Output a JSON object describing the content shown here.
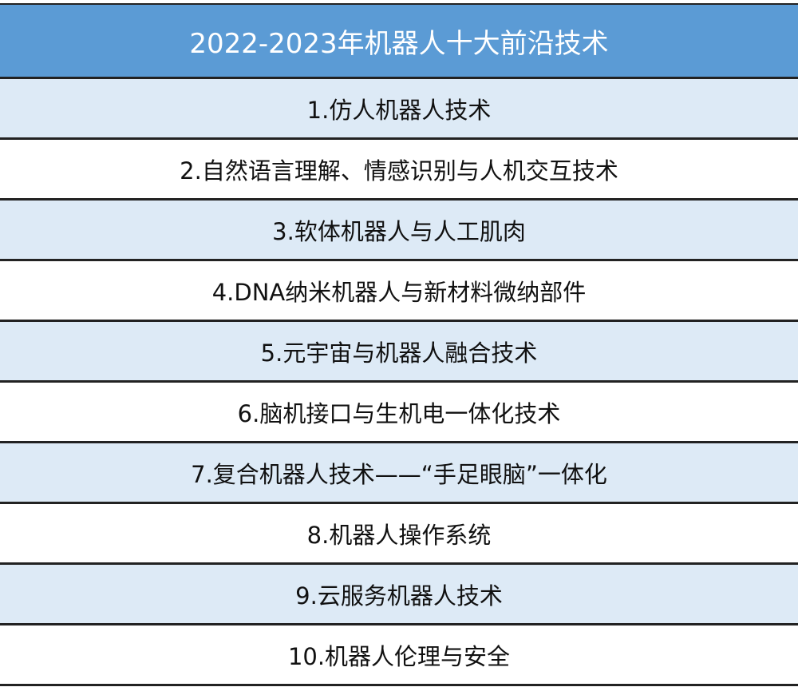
{
  "title": "2022-2023年机器人十大前沿技术",
  "colors": {
    "header_bg": "#5b9bd5",
    "stripe_bg": "#ddeaf6"
  },
  "items": [
    "1.仿人机器人技术",
    "2.自然语言理解、情感识别与人机交互技术",
    "3.软体机器人与人工肌肉",
    "4.DNA纳米机器人与新材料微纳部件",
    "5.元宇宙与机器人融合技术",
    "6.脑机接口与生机电一体化技术",
    "7.复合机器人技术——“手足眼脑”一体化",
    "8.机器人操作系统",
    "9.云服务机器人技术",
    "10.机器人伦理与安全"
  ]
}
